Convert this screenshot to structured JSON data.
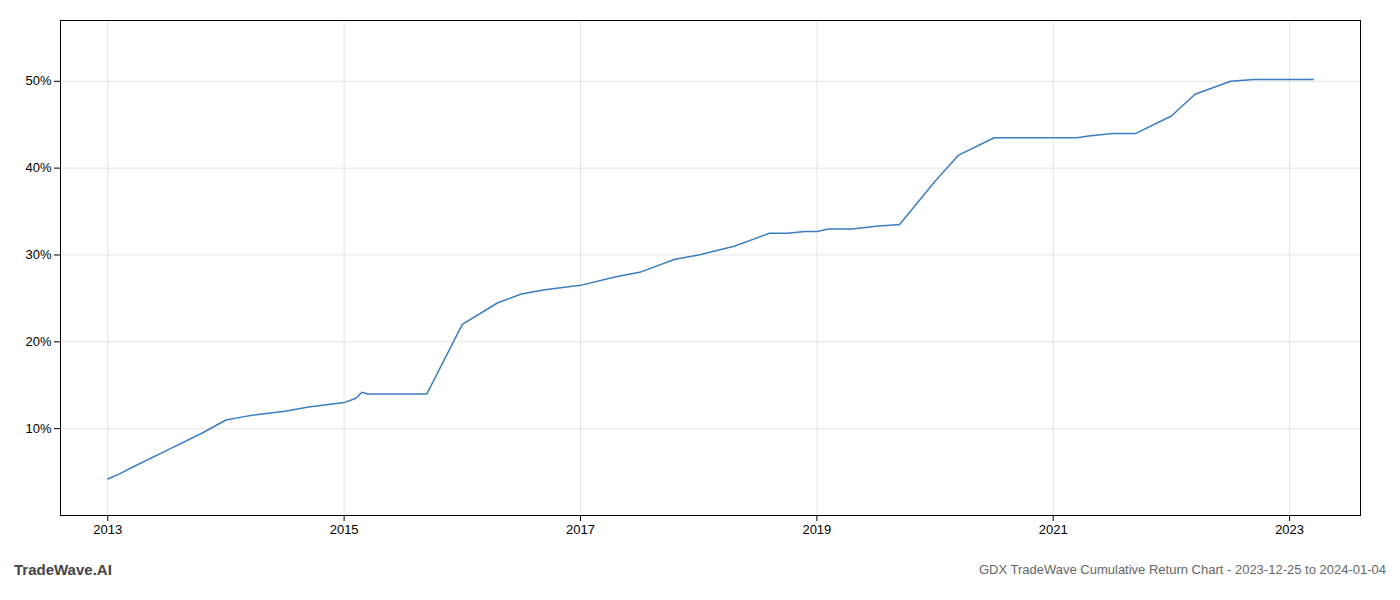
{
  "chart_data": {
    "type": "line",
    "title": "GDX TradeWave Cumulative Return Chart - 2023-12-25 to 2024-01-04",
    "annotations": [
      "TradeWave.AI"
    ],
    "color": "#3a7ebf",
    "x": [
      2013.0,
      2013.1,
      2013.2,
      2013.5,
      2013.8,
      2014.0,
      2014.2,
      2014.5,
      2014.7,
      2015.0,
      2015.1,
      2015.15,
      2015.2,
      2015.5,
      2015.7,
      2016.0,
      2016.3,
      2016.5,
      2016.7,
      2017.0,
      2017.3,
      2017.5,
      2017.8,
      2018.0,
      2018.3,
      2018.5,
      2018.6,
      2018.75,
      2018.9,
      2019.0,
      2019.1,
      2019.2,
      2019.3,
      2019.5,
      2019.7,
      2020.0,
      2020.2,
      2020.5,
      2020.7,
      2021.0,
      2021.2,
      2021.3,
      2021.5,
      2021.7,
      2022.0,
      2022.2,
      2022.5,
      2022.7,
      2023.0,
      2023.2
    ],
    "values": [
      4.2,
      4.8,
      5.5,
      7.5,
      9.5,
      11.0,
      11.5,
      12.0,
      12.5,
      13.0,
      13.5,
      14.2,
      14.0,
      14.0,
      14.0,
      22.0,
      24.5,
      25.5,
      26.0,
      26.5,
      27.5,
      28.0,
      29.5,
      30.0,
      31.0,
      32.0,
      32.5,
      32.5,
      32.7,
      32.7,
      33.0,
      33.0,
      33.0,
      33.3,
      33.5,
      38.5,
      41.5,
      43.5,
      43.5,
      43.5,
      43.5,
      43.7,
      44.0,
      44.0,
      46.0,
      48.5,
      50.0,
      50.2,
      50.2,
      50.2
    ],
    "xlim": [
      2012.6,
      2023.6
    ],
    "xticks": [
      2013,
      2015,
      2017,
      2019,
      2021,
      2023
    ],
    "ylim": [
      0,
      57
    ],
    "yticks": [
      {
        "value": 10,
        "label": "10%"
      },
      {
        "value": 20,
        "label": "20%"
      },
      {
        "value": 30,
        "label": "30%"
      },
      {
        "value": 40,
        "label": "40%"
      },
      {
        "value": 50,
        "label": "50%"
      }
    ],
    "grid": true
  }
}
